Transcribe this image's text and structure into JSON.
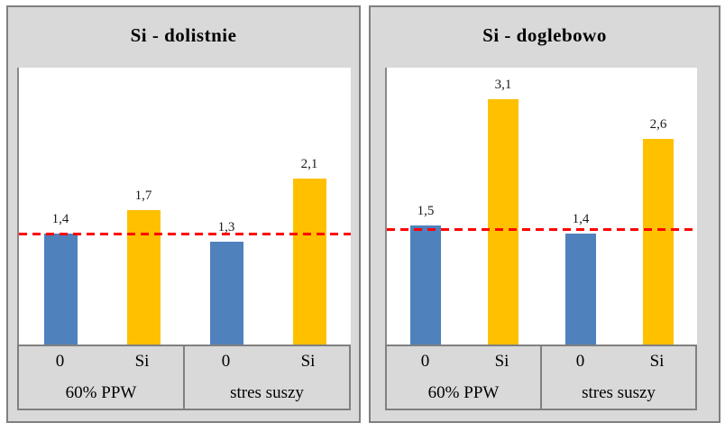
{
  "colors": {
    "bar_blue": "#4f81bd",
    "bar_yellow": "#ffc000",
    "reference_red": "#ff0000",
    "panel_background": "#d9d9d9",
    "panel_border": "#7f7f7f",
    "axis_line": "#808080"
  },
  "chart_data": [
    {
      "type": "bar",
      "title": "Si - dolistnie",
      "categories": [
        "60% PPW",
        "stres suszy"
      ],
      "bar_labels": [
        "0",
        "Si",
        "0",
        "Si"
      ],
      "bars": [
        {
          "group": "60% PPW",
          "x": "0",
          "value": 1.4,
          "label": "1,4",
          "color": "#4f81bd"
        },
        {
          "group": "60% PPW",
          "x": "Si",
          "value": 1.7,
          "label": "1,7",
          "color": "#ffc000"
        },
        {
          "group": "stres suszy",
          "x": "0",
          "value": 1.3,
          "label": "1,3",
          "color": "#4f81bd"
        },
        {
          "group": "stres suszy",
          "x": "Si",
          "value": 2.1,
          "label": "2,1",
          "color": "#ffc000"
        }
      ],
      "reference_line": {
        "value": 1.4,
        "color": "#ff0000",
        "style": "dashed"
      },
      "ylim": [
        0,
        3.5
      ],
      "y_axis_ticks": "none",
      "grid": false,
      "legend": "none"
    },
    {
      "type": "bar",
      "title": "Si - doglebowo",
      "categories": [
        "60% PPW",
        "stres suszy"
      ],
      "bar_labels": [
        "0",
        "Si",
        "0",
        "Si"
      ],
      "bars": [
        {
          "group": "60% PPW",
          "x": "0",
          "value": 1.5,
          "label": "1,5",
          "color": "#4f81bd"
        },
        {
          "group": "60% PPW",
          "x": "Si",
          "value": 3.1,
          "label": "3,1",
          "color": "#ffc000"
        },
        {
          "group": "stres suszy",
          "x": "0",
          "value": 1.4,
          "label": "1,4",
          "color": "#4f81bd"
        },
        {
          "group": "stres suszy",
          "x": "Si",
          "value": 2.6,
          "label": "2,6",
          "color": "#ffc000"
        }
      ],
      "reference_line": {
        "value": 1.45,
        "color": "#ff0000",
        "style": "dashed"
      },
      "ylim": [
        0,
        3.5
      ],
      "y_axis_ticks": "none",
      "grid": false,
      "legend": "none"
    }
  ]
}
